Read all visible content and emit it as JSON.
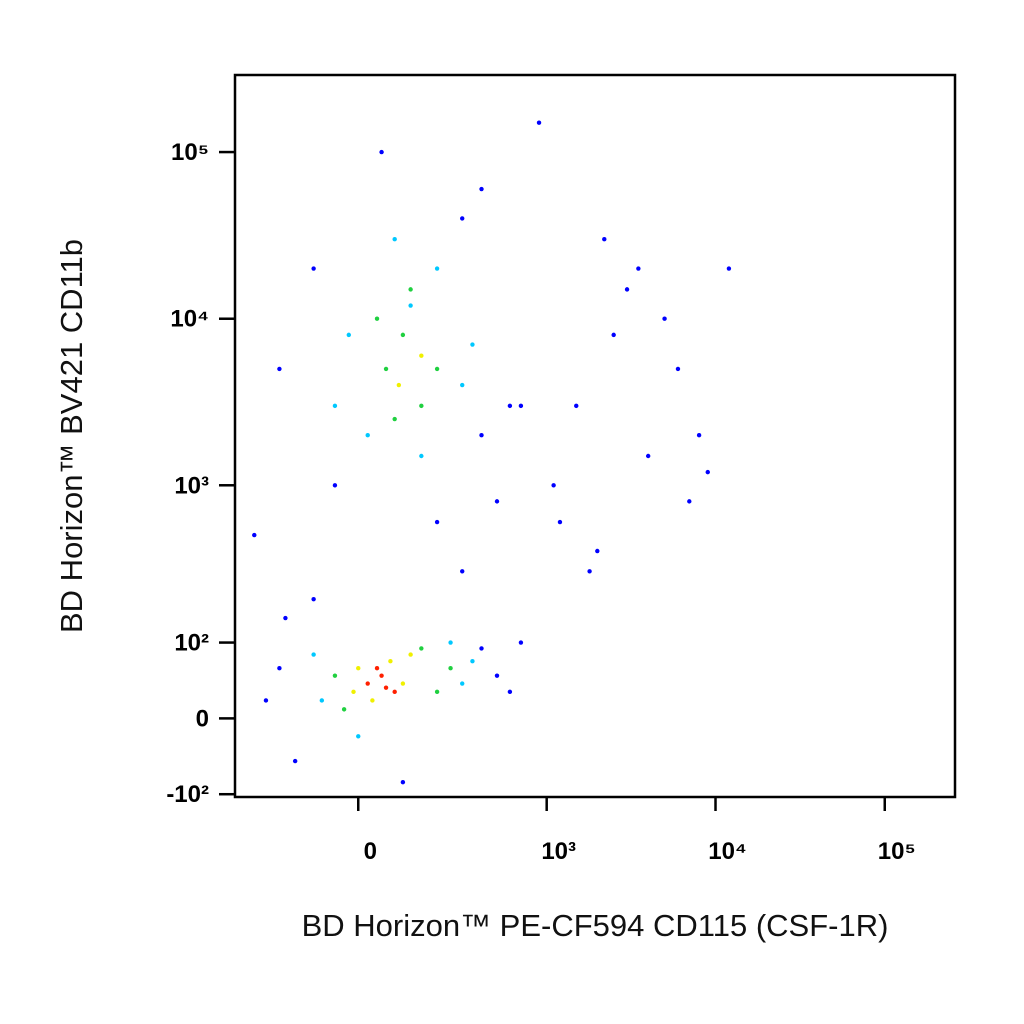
{
  "chart_data": {
    "type": "scatter",
    "xlabel": "BD Horizon™ PE-CF594 CD115 (CSF-1R)",
    "ylabel": "BD Horizon™ BV421 CD11b",
    "xscale": "arcsinh",
    "xcofactor": 155,
    "yscale": "arcsinh",
    "ycofactor": 80,
    "xlim": [
      -400,
      260000
    ],
    "ylim": [
      -105,
      290000
    ],
    "xticks": [
      0,
      {
        "value": 1000,
        "label": "10³"
      },
      {
        "value": 10000,
        "label": "10⁴"
      },
      {
        "value": 100000,
        "label": "10⁵"
      }
    ],
    "yticks": [
      {
        "value": -100,
        "label": "-10²"
      },
      0,
      {
        "value": 100,
        "label": "10²"
      },
      {
        "value": 1000,
        "label": "10³"
      },
      {
        "value": 10000,
        "label": "10⁴"
      },
      {
        "value": 100000,
        "label": "10⁵"
      }
    ],
    "series": [
      {
        "color": "#0000ff",
        "x": [
          -200,
          500,
          -150,
          600,
          100,
          -250,
          400,
          -100,
          700,
          300,
          -300,
          500,
          -50,
          200,
          400,
          -200,
          600,
          -100,
          300,
          50,
          1500,
          2500,
          4000,
          6000,
          8000,
          1200,
          2000,
          3000,
          5000,
          7000,
          1800,
          3500,
          9000,
          1100,
          2200,
          700,
          900,
          12000,
          400,
          -180
        ],
        "values": [
          60,
          50,
          -50,
          30,
          -80,
          20,
          90,
          200,
          100,
          300,
          500,
          800,
          1000,
          600,
          2000,
          5000,
          3000,
          20000,
          40000,
          100000,
          3000,
          8000,
          1500,
          5000,
          2000,
          600,
          400,
          15000,
          10000,
          800,
          300,
          20000,
          1200,
          1000,
          30000,
          3000,
          150000,
          20000,
          60000,
          150
        ]
      },
      {
        "color": "#00c8ff",
        "x": [
          -100,
          300,
          -80,
          350,
          0,
          250,
          -50,
          300,
          120,
          -20,
          200,
          80,
          350,
          20,
          150
        ],
        "values": [
          80,
          40,
          20,
          70,
          -20,
          100,
          3000,
          4000,
          12000,
          8000,
          20000,
          30000,
          7000,
          2000,
          1500
        ]
      },
      {
        "color": "#20d040",
        "x": [
          -50,
          200,
          150,
          -30,
          250,
          60,
          100,
          150,
          40,
          200,
          80,
          120
        ],
        "values": [
          50,
          30,
          90,
          10,
          60,
          5000,
          8000,
          3000,
          10000,
          5000,
          2500,
          15000
        ]
      },
      {
        "color": "#f0f000",
        "x": [
          0,
          100,
          30,
          120,
          70,
          90,
          150,
          -10
        ],
        "values": [
          60,
          40,
          20,
          80,
          70,
          4000,
          6000,
          30
        ]
      },
      {
        "color": "#ff2000",
        "x": [
          20,
          50,
          80,
          40,
          60
        ],
        "values": [
          40,
          50,
          30,
          60,
          35
        ]
      }
    ]
  }
}
